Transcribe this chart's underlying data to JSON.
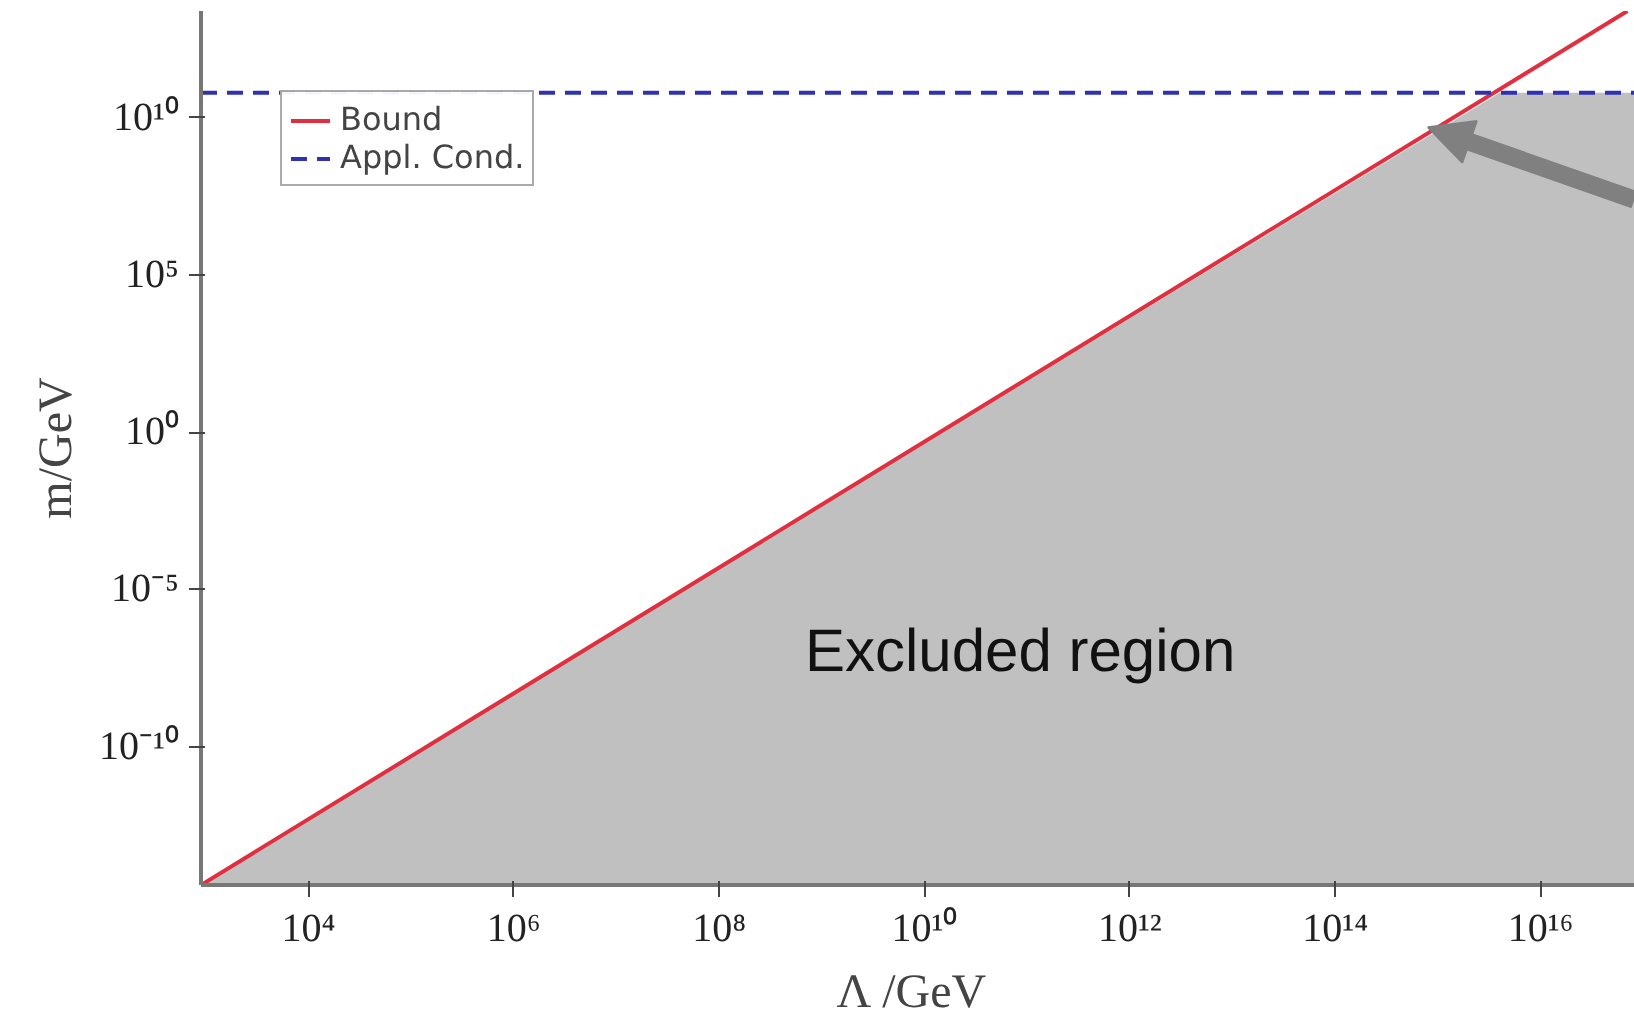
{
  "chart_data": {
    "type": "line",
    "xlabel": "Λ  /GeV",
    "ylabel": "m/GeV",
    "log": "xy",
    "grid": false,
    "legend": "top left",
    "xlim": [
      900,
      8.3e+16
    ],
    "ylim": [
      4e-15,
      25000000000000.0
    ],
    "xticks": [
      {
        "value": 10000.0,
        "label": "10⁴"
      },
      {
        "value": 1000000.0,
        "label": "10⁶"
      },
      {
        "value": 100000000.0,
        "label": "10⁸"
      },
      {
        "value": 10000000000.0,
        "label": "10¹⁰"
      },
      {
        "value": 1000000000000.0,
        "label": "10¹²"
      },
      {
        "value": 100000000000000.0,
        "label": "10¹⁴"
      },
      {
        "value": 1e+16,
        "label": "10¹⁶"
      }
    ],
    "yticks": [
      {
        "value": 1e-10,
        "label": "10⁻¹⁰"
      },
      {
        "value": 1e-05,
        "label": "10⁻⁵"
      },
      {
        "value": 1,
        "label": "10⁰"
      },
      {
        "value": 100000.0,
        "label": "10⁵"
      },
      {
        "value": 10000000000.0,
        "label": "10¹⁰"
      }
    ],
    "series": [
      {
        "type": "area",
        "color": "#c0c0c0",
        "x": [
          900,
          4000000000000000.0,
          8.3e+16
        ],
        "values": [
          4e-15,
          63000000000.0,
          63000000000.0
        ]
      },
      {
        "name": "Bound",
        "line_style": "solid",
        "color": "#e03040",
        "x": [
          900,
          7e+16
        ],
        "values": [
          4e-15,
          25000000000000.0
        ]
      },
      {
        "name": "Appl. Cond.",
        "line_style": "dashed",
        "color": "#3030b0",
        "x": [
          900,
          8.3e+16
        ],
        "values": [
          63000000000.0,
          63000000000.0
        ]
      }
    ],
    "annotations": [
      "Excluded region"
    ]
  }
}
